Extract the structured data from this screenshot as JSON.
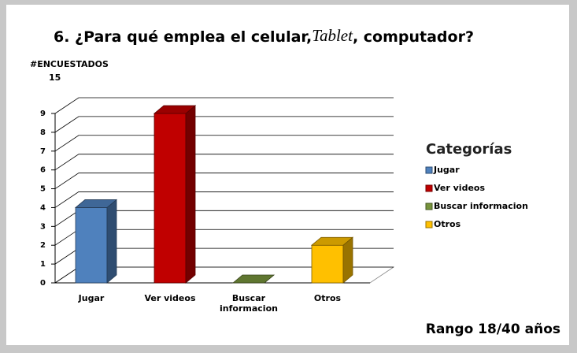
{
  "chart_data": {
    "type": "bar",
    "title": [
      "6. ¿Para qué emplea el celular,",
      "Tablet",
      ", computador?"
    ],
    "y_label": "#ENCUESTADOS",
    "y_label_extra": "15",
    "categories": [
      "Jugar",
      "Ver videos",
      "Buscar informacion",
      "Otros"
    ],
    "values": [
      4,
      9,
      0,
      2
    ],
    "colors": [
      "#4f81bd",
      "#c00000",
      "#77933c",
      "#ffc000"
    ],
    "ylim": [
      0,
      9
    ],
    "yticks": [
      0,
      1,
      2,
      3,
      4,
      5,
      6,
      7,
      8,
      9
    ],
    "grid": true,
    "legend_title": "Categorías",
    "legend_position": "right",
    "footer": "Rango 18/40 años"
  }
}
